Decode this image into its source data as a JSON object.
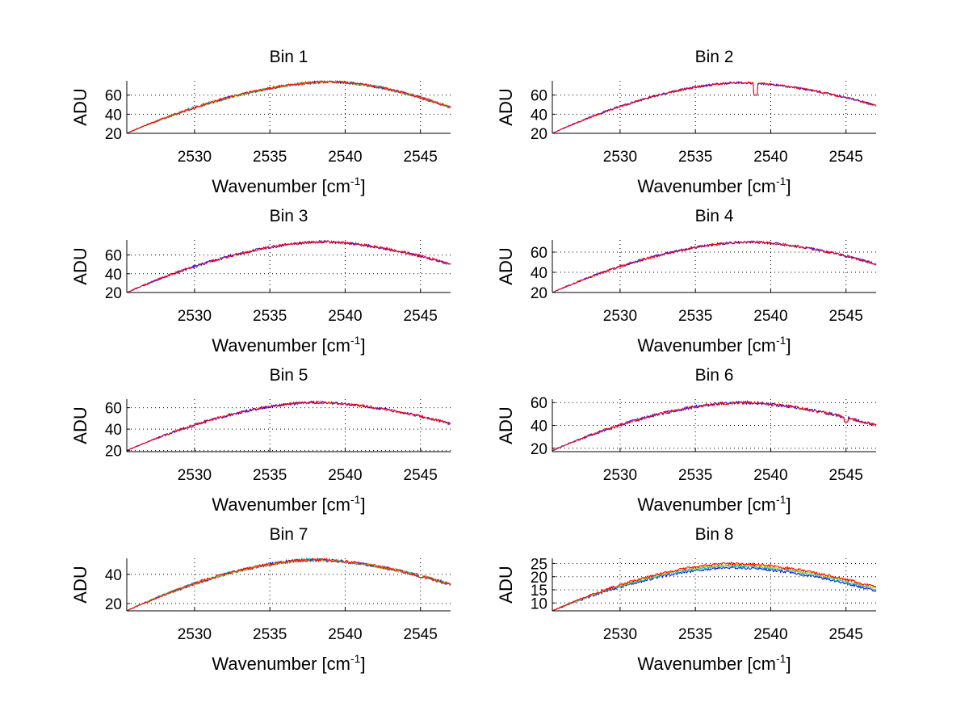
{
  "chart_data": [
    {
      "type": "line",
      "title": "Bin 1",
      "xlabel": "Wavenumber [cm",
      "xlabel_sup": "-1",
      "xlabel_end": "]",
      "ylabel": "ADU",
      "xlim": [
        2525.5,
        2547
      ],
      "ylim": [
        20,
        75
      ],
      "xticks": [
        2530,
        2535,
        2540,
        2545
      ],
      "yticks": [
        20,
        40,
        60
      ],
      "peak_x": 2539,
      "series": [
        {
          "name": "s1",
          "base": [
            20,
            74,
            47
          ],
          "color": "#0000ff"
        },
        {
          "name": "s2",
          "base": [
            20,
            74,
            47
          ],
          "color": "#00bfbf"
        },
        {
          "name": "s3",
          "base": [
            20,
            74,
            47
          ],
          "color": "#bfbf00"
        },
        {
          "name": "s4",
          "base": [
            20,
            74,
            47
          ],
          "color": "#ff0000"
        }
      ],
      "noise": 1.3
    },
    {
      "type": "line",
      "title": "Bin 2",
      "xlabel": "Wavenumber [cm",
      "xlabel_sup": "-1",
      "xlabel_end": "]",
      "ylabel": "ADU",
      "xlim": [
        2525.5,
        2547
      ],
      "ylim": [
        20,
        75
      ],
      "xticks": [
        2530,
        2535,
        2540,
        2545
      ],
      "yticks": [
        20,
        40,
        60
      ],
      "peak_x": 2538,
      "series": [
        {
          "name": "s1",
          "base": [
            20,
            73,
            49
          ],
          "color": "#0000ff"
        },
        {
          "name": "s2",
          "base": [
            20,
            73,
            49
          ],
          "color": "#ff0000"
        }
      ],
      "noise": 1.1,
      "dips": [
        [
          2539,
          60
        ]
      ]
    },
    {
      "type": "line",
      "title": "Bin 3",
      "xlabel": "Wavenumber [cm",
      "xlabel_sup": "-1",
      "xlabel_end": "]",
      "ylabel": "ADU",
      "xlim": [
        2525.5,
        2547
      ],
      "ylim": [
        20,
        76
      ],
      "xticks": [
        2530,
        2535,
        2540,
        2545
      ],
      "yticks": [
        20,
        40,
        60
      ],
      "peak_x": 2538.5,
      "series": [
        {
          "name": "s1",
          "base": [
            20,
            74,
            50
          ],
          "color": "#0000ff"
        },
        {
          "name": "s2",
          "base": [
            20,
            74,
            50
          ],
          "color": "#ff0000"
        }
      ],
      "noise": 1.4
    },
    {
      "type": "line",
      "title": "Bin 4",
      "xlabel": "Wavenumber [cm",
      "xlabel_sup": "-1",
      "xlabel_end": "]",
      "ylabel": "ADU",
      "xlim": [
        2525.5,
        2547
      ],
      "ylim": [
        20,
        72
      ],
      "xticks": [
        2530,
        2535,
        2540,
        2545
      ],
      "yticks": [
        20,
        40,
        60
      ],
      "peak_x": 2538.5,
      "series": [
        {
          "name": "s1",
          "base": [
            20,
            70,
            48
          ],
          "color": "#0000ff"
        },
        {
          "name": "s2",
          "base": [
            20,
            70,
            48
          ],
          "color": "#ff0000"
        }
      ],
      "noise": 1.2
    },
    {
      "type": "line",
      "title": "Bin 5",
      "xlabel": "Wavenumber [cm",
      "xlabel_sup": "-1",
      "xlabel_end": "]",
      "ylabel": "ADU",
      "xlim": [
        2525.5,
        2547
      ],
      "ylim": [
        19,
        68
      ],
      "xticks": [
        2530,
        2535,
        2540,
        2545
      ],
      "yticks": [
        20,
        40,
        60
      ],
      "peak_x": 2538,
      "series": [
        {
          "name": "s1",
          "base": [
            20,
            65,
            45
          ],
          "color": "#0000ff"
        },
        {
          "name": "s2",
          "base": [
            20,
            65,
            45
          ],
          "color": "#ff0000"
        }
      ],
      "noise": 1.2
    },
    {
      "type": "line",
      "title": "Bin 6",
      "xlabel": "Wavenumber [cm",
      "xlabel_sup": "-1",
      "xlabel_end": "]",
      "ylabel": "ADU",
      "xlim": [
        2525.5,
        2547
      ],
      "ylim": [
        17,
        63
      ],
      "xticks": [
        2530,
        2535,
        2540,
        2545
      ],
      "yticks": [
        20,
        40,
        60
      ],
      "peak_x": 2538,
      "series": [
        {
          "name": "s1",
          "base": [
            18,
            60,
            40
          ],
          "color": "#0000ff"
        },
        {
          "name": "s2",
          "base": [
            18,
            60,
            40
          ],
          "color": "#ff0000"
        }
      ],
      "noise": 1.3,
      "dips": [
        [
          2545,
          43
        ]
      ]
    },
    {
      "type": "line",
      "title": "Bin 7",
      "xlabel": "Wavenumber [cm",
      "xlabel_sup": "-1",
      "xlabel_end": "]",
      "ylabel": "ADU",
      "xlim": [
        2525.5,
        2547
      ],
      "ylim": [
        15,
        51
      ],
      "xticks": [
        2530,
        2535,
        2540,
        2545
      ],
      "yticks": [
        20,
        40
      ],
      "peak_x": 2538,
      "series": [
        {
          "name": "s1",
          "base": [
            15,
            50,
            33
          ],
          "color": "#0000ff"
        },
        {
          "name": "s2",
          "base": [
            15,
            50,
            33
          ],
          "color": "#00bfbf"
        },
        {
          "name": "s3",
          "base": [
            15,
            50,
            33
          ],
          "color": "#bfbf00"
        },
        {
          "name": "s4",
          "base": [
            15,
            50,
            33
          ],
          "color": "#ff0000"
        }
      ],
      "noise": 1.0,
      "dips": [
        [
          2545,
          38
        ]
      ]
    },
    {
      "type": "line",
      "title": "Bin 8",
      "xlabel": "Wavenumber [cm",
      "xlabel_sup": "-1",
      "xlabel_end": "]",
      "ylabel": "ADU",
      "xlim": [
        2525.5,
        2547
      ],
      "ylim": [
        7,
        27
      ],
      "xticks": [
        2530,
        2535,
        2540,
        2545
      ],
      "yticks": [
        10,
        15,
        20,
        25
      ],
      "peak_x": 2537.5,
      "series": [
        {
          "name": "s1",
          "base": [
            7,
            23.5,
            14.5
          ],
          "color": "#0000ff"
        },
        {
          "name": "s2",
          "base": [
            7,
            24,
            15
          ],
          "color": "#00bfbf"
        },
        {
          "name": "s3",
          "base": [
            7,
            24.5,
            15.5
          ],
          "color": "#bfbf00"
        },
        {
          "name": "s4",
          "base": [
            7,
            25,
            16
          ],
          "color": "#ff0000"
        }
      ],
      "noise": 0.5
    }
  ]
}
